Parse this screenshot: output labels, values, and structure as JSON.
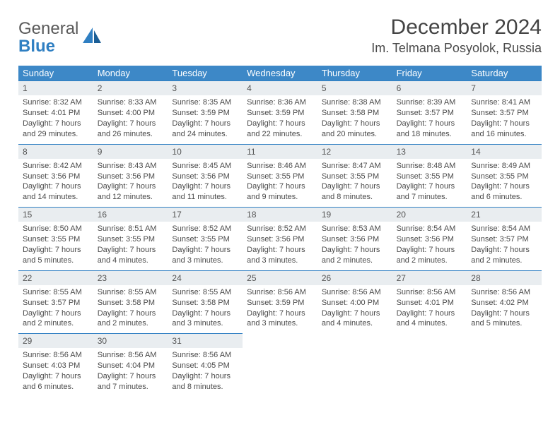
{
  "logo": {
    "line1": "General",
    "line2": "Blue"
  },
  "title": "December 2024",
  "location": "Im. Telmana Posyolok, Russia",
  "colors": {
    "header_bg": "#3d88c7",
    "daybar_bg": "#e9edf0",
    "daybar_border": "#2f7fc2",
    "text": "#4a4a4a",
    "logo_gray": "#5a5a5a",
    "logo_blue": "#2f7fc2"
  },
  "day_names": [
    "Sunday",
    "Monday",
    "Tuesday",
    "Wednesday",
    "Thursday",
    "Friday",
    "Saturday"
  ],
  "weeks": [
    [
      {
        "num": "1",
        "sunrise": "Sunrise: 8:32 AM",
        "sunset": "Sunset: 4:01 PM",
        "day1": "Daylight: 7 hours",
        "day2": "and 29 minutes."
      },
      {
        "num": "2",
        "sunrise": "Sunrise: 8:33 AM",
        "sunset": "Sunset: 4:00 PM",
        "day1": "Daylight: 7 hours",
        "day2": "and 26 minutes."
      },
      {
        "num": "3",
        "sunrise": "Sunrise: 8:35 AM",
        "sunset": "Sunset: 3:59 PM",
        "day1": "Daylight: 7 hours",
        "day2": "and 24 minutes."
      },
      {
        "num": "4",
        "sunrise": "Sunrise: 8:36 AM",
        "sunset": "Sunset: 3:59 PM",
        "day1": "Daylight: 7 hours",
        "day2": "and 22 minutes."
      },
      {
        "num": "5",
        "sunrise": "Sunrise: 8:38 AM",
        "sunset": "Sunset: 3:58 PM",
        "day1": "Daylight: 7 hours",
        "day2": "and 20 minutes."
      },
      {
        "num": "6",
        "sunrise": "Sunrise: 8:39 AM",
        "sunset": "Sunset: 3:57 PM",
        "day1": "Daylight: 7 hours",
        "day2": "and 18 minutes."
      },
      {
        "num": "7",
        "sunrise": "Sunrise: 8:41 AM",
        "sunset": "Sunset: 3:57 PM",
        "day1": "Daylight: 7 hours",
        "day2": "and 16 minutes."
      }
    ],
    [
      {
        "num": "8",
        "sunrise": "Sunrise: 8:42 AM",
        "sunset": "Sunset: 3:56 PM",
        "day1": "Daylight: 7 hours",
        "day2": "and 14 minutes."
      },
      {
        "num": "9",
        "sunrise": "Sunrise: 8:43 AM",
        "sunset": "Sunset: 3:56 PM",
        "day1": "Daylight: 7 hours",
        "day2": "and 12 minutes."
      },
      {
        "num": "10",
        "sunrise": "Sunrise: 8:45 AM",
        "sunset": "Sunset: 3:56 PM",
        "day1": "Daylight: 7 hours",
        "day2": "and 11 minutes."
      },
      {
        "num": "11",
        "sunrise": "Sunrise: 8:46 AM",
        "sunset": "Sunset: 3:55 PM",
        "day1": "Daylight: 7 hours",
        "day2": "and 9 minutes."
      },
      {
        "num": "12",
        "sunrise": "Sunrise: 8:47 AM",
        "sunset": "Sunset: 3:55 PM",
        "day1": "Daylight: 7 hours",
        "day2": "and 8 minutes."
      },
      {
        "num": "13",
        "sunrise": "Sunrise: 8:48 AM",
        "sunset": "Sunset: 3:55 PM",
        "day1": "Daylight: 7 hours",
        "day2": "and 7 minutes."
      },
      {
        "num": "14",
        "sunrise": "Sunrise: 8:49 AM",
        "sunset": "Sunset: 3:55 PM",
        "day1": "Daylight: 7 hours",
        "day2": "and 6 minutes."
      }
    ],
    [
      {
        "num": "15",
        "sunrise": "Sunrise: 8:50 AM",
        "sunset": "Sunset: 3:55 PM",
        "day1": "Daylight: 7 hours",
        "day2": "and 5 minutes."
      },
      {
        "num": "16",
        "sunrise": "Sunrise: 8:51 AM",
        "sunset": "Sunset: 3:55 PM",
        "day1": "Daylight: 7 hours",
        "day2": "and 4 minutes."
      },
      {
        "num": "17",
        "sunrise": "Sunrise: 8:52 AM",
        "sunset": "Sunset: 3:55 PM",
        "day1": "Daylight: 7 hours",
        "day2": "and 3 minutes."
      },
      {
        "num": "18",
        "sunrise": "Sunrise: 8:52 AM",
        "sunset": "Sunset: 3:56 PM",
        "day1": "Daylight: 7 hours",
        "day2": "and 3 minutes."
      },
      {
        "num": "19",
        "sunrise": "Sunrise: 8:53 AM",
        "sunset": "Sunset: 3:56 PM",
        "day1": "Daylight: 7 hours",
        "day2": "and 2 minutes."
      },
      {
        "num": "20",
        "sunrise": "Sunrise: 8:54 AM",
        "sunset": "Sunset: 3:56 PM",
        "day1": "Daylight: 7 hours",
        "day2": "and 2 minutes."
      },
      {
        "num": "21",
        "sunrise": "Sunrise: 8:54 AM",
        "sunset": "Sunset: 3:57 PM",
        "day1": "Daylight: 7 hours",
        "day2": "and 2 minutes."
      }
    ],
    [
      {
        "num": "22",
        "sunrise": "Sunrise: 8:55 AM",
        "sunset": "Sunset: 3:57 PM",
        "day1": "Daylight: 7 hours",
        "day2": "and 2 minutes."
      },
      {
        "num": "23",
        "sunrise": "Sunrise: 8:55 AM",
        "sunset": "Sunset: 3:58 PM",
        "day1": "Daylight: 7 hours",
        "day2": "and 2 minutes."
      },
      {
        "num": "24",
        "sunrise": "Sunrise: 8:55 AM",
        "sunset": "Sunset: 3:58 PM",
        "day1": "Daylight: 7 hours",
        "day2": "and 3 minutes."
      },
      {
        "num": "25",
        "sunrise": "Sunrise: 8:56 AM",
        "sunset": "Sunset: 3:59 PM",
        "day1": "Daylight: 7 hours",
        "day2": "and 3 minutes."
      },
      {
        "num": "26",
        "sunrise": "Sunrise: 8:56 AM",
        "sunset": "Sunset: 4:00 PM",
        "day1": "Daylight: 7 hours",
        "day2": "and 4 minutes."
      },
      {
        "num": "27",
        "sunrise": "Sunrise: 8:56 AM",
        "sunset": "Sunset: 4:01 PM",
        "day1": "Daylight: 7 hours",
        "day2": "and 4 minutes."
      },
      {
        "num": "28",
        "sunrise": "Sunrise: 8:56 AM",
        "sunset": "Sunset: 4:02 PM",
        "day1": "Daylight: 7 hours",
        "day2": "and 5 minutes."
      }
    ],
    [
      {
        "num": "29",
        "sunrise": "Sunrise: 8:56 AM",
        "sunset": "Sunset: 4:03 PM",
        "day1": "Daylight: 7 hours",
        "day2": "and 6 minutes."
      },
      {
        "num": "30",
        "sunrise": "Sunrise: 8:56 AM",
        "sunset": "Sunset: 4:04 PM",
        "day1": "Daylight: 7 hours",
        "day2": "and 7 minutes."
      },
      {
        "num": "31",
        "sunrise": "Sunrise: 8:56 AM",
        "sunset": "Sunset: 4:05 PM",
        "day1": "Daylight: 7 hours",
        "day2": "and 8 minutes."
      },
      null,
      null,
      null,
      null
    ]
  ]
}
